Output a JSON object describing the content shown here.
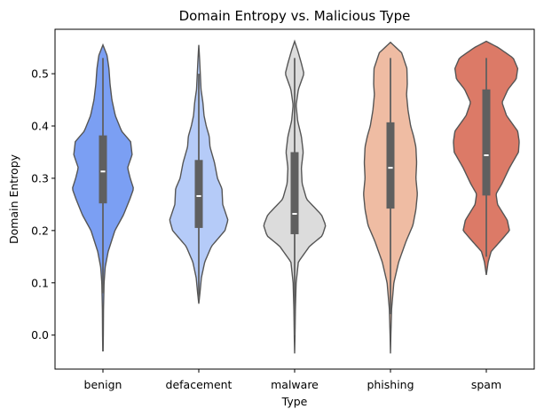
{
  "chart_data": {
    "type": "violin",
    "title": "Domain Entropy vs. Malicious Type",
    "xlabel": "Type",
    "ylabel": "Domain Entropy",
    "categories": [
      "benign",
      "defacement",
      "malware",
      "phishing",
      "spam"
    ],
    "ylim": [
      -0.065,
      0.585
    ],
    "yticks": [
      "0.0",
      "0.1",
      "0.2",
      "0.3",
      "0.4",
      "0.5"
    ],
    "grid": false,
    "colors": {
      "benign": "#7b9ff3",
      "defacement": "#b5cbf8",
      "malware": "#dcdcdc",
      "phishing": "#efbca3",
      "spam": "#dc7a67",
      "box": "#5f5f5f",
      "outline": "#555555"
    },
    "series": [
      {
        "category": "benign",
        "range": [
          -0.03,
          0.555
        ],
        "whisker": [
          0.08,
          0.53
        ],
        "q1": 0.252,
        "median": 0.313,
        "q3": 0.382,
        "density": [
          [
            -0.03,
            0.005
          ],
          [
            0.0,
            0.01
          ],
          [
            0.05,
            0.015
          ],
          [
            0.1,
            0.03
          ],
          [
            0.13,
            0.06
          ],
          [
            0.16,
            0.14
          ],
          [
            0.2,
            0.32
          ],
          [
            0.23,
            0.55
          ],
          [
            0.26,
            0.72
          ],
          [
            0.28,
            0.82
          ],
          [
            0.3,
            0.73
          ],
          [
            0.32,
            0.66
          ],
          [
            0.345,
            0.78
          ],
          [
            0.37,
            0.74
          ],
          [
            0.39,
            0.5
          ],
          [
            0.42,
            0.33
          ],
          [
            0.45,
            0.24
          ],
          [
            0.48,
            0.19
          ],
          [
            0.51,
            0.16
          ],
          [
            0.535,
            0.11
          ],
          [
            0.555,
            0.0
          ]
        ]
      },
      {
        "category": "defacement",
        "range": [
          0.06,
          0.555
        ],
        "whisker": [
          0.07,
          0.5
        ],
        "q1": 0.205,
        "median": 0.266,
        "q3": 0.335,
        "density": [
          [
            0.06,
            0.0
          ],
          [
            0.08,
            0.03
          ],
          [
            0.11,
            0.07
          ],
          [
            0.14,
            0.16
          ],
          [
            0.17,
            0.34
          ],
          [
            0.2,
            0.7
          ],
          [
            0.22,
            0.78
          ],
          [
            0.25,
            0.64
          ],
          [
            0.28,
            0.62
          ],
          [
            0.3,
            0.5
          ],
          [
            0.33,
            0.42
          ],
          [
            0.36,
            0.3
          ],
          [
            0.38,
            0.28
          ],
          [
            0.4,
            0.2
          ],
          [
            0.42,
            0.14
          ],
          [
            0.445,
            0.11
          ],
          [
            0.47,
            0.06
          ],
          [
            0.5,
            0.04
          ],
          [
            0.53,
            0.02
          ],
          [
            0.555,
            0.0
          ]
        ]
      },
      {
        "category": "malware",
        "range": [
          -0.035,
          0.562
        ],
        "whisker": [
          0.0,
          0.53
        ],
        "q1": 0.193,
        "median": 0.232,
        "q3": 0.35,
        "density": [
          [
            -0.035,
            0.0
          ],
          [
            0.0,
            0.01
          ],
          [
            0.05,
            0.02
          ],
          [
            0.1,
            0.04
          ],
          [
            0.14,
            0.1
          ],
          [
            0.17,
            0.4
          ],
          [
            0.19,
            0.74
          ],
          [
            0.21,
            0.83
          ],
          [
            0.23,
            0.72
          ],
          [
            0.26,
            0.32
          ],
          [
            0.29,
            0.2
          ],
          [
            0.32,
            0.18
          ],
          [
            0.35,
            0.23
          ],
          [
            0.38,
            0.18
          ],
          [
            0.41,
            0.08
          ],
          [
            0.44,
            0.04
          ],
          [
            0.47,
            0.1
          ],
          [
            0.5,
            0.25
          ],
          [
            0.52,
            0.18
          ],
          [
            0.545,
            0.08
          ],
          [
            0.562,
            0.0
          ]
        ]
      },
      {
        "category": "phishing",
        "range": [
          -0.035,
          0.56
        ],
        "whisker": [
          0.04,
          0.53
        ],
        "q1": 0.242,
        "median": 0.32,
        "q3": 0.407,
        "density": [
          [
            -0.035,
            0.0
          ],
          [
            0.0,
            0.01
          ],
          [
            0.05,
            0.03
          ],
          [
            0.1,
            0.09
          ],
          [
            0.14,
            0.22
          ],
          [
            0.18,
            0.42
          ],
          [
            0.21,
            0.6
          ],
          [
            0.24,
            0.68
          ],
          [
            0.27,
            0.72
          ],
          [
            0.3,
            0.68
          ],
          [
            0.33,
            0.7
          ],
          [
            0.36,
            0.68
          ],
          [
            0.38,
            0.62
          ],
          [
            0.4,
            0.54
          ],
          [
            0.43,
            0.47
          ],
          [
            0.46,
            0.43
          ],
          [
            0.48,
            0.45
          ],
          [
            0.51,
            0.44
          ],
          [
            0.54,
            0.3
          ],
          [
            0.56,
            0.0
          ]
        ]
      },
      {
        "category": "spam",
        "range": [
          0.115,
          0.562
        ],
        "whisker": [
          0.15,
          0.53
        ],
        "q1": 0.267,
        "median": 0.344,
        "q3": 0.47,
        "density": [
          [
            0.115,
            0.0
          ],
          [
            0.14,
            0.05
          ],
          [
            0.16,
            0.13
          ],
          [
            0.18,
            0.38
          ],
          [
            0.2,
            0.62
          ],
          [
            0.22,
            0.56
          ],
          [
            0.25,
            0.3
          ],
          [
            0.27,
            0.26
          ],
          [
            0.29,
            0.42
          ],
          [
            0.32,
            0.62
          ],
          [
            0.35,
            0.86
          ],
          [
            0.37,
            0.88
          ],
          [
            0.39,
            0.84
          ],
          [
            0.42,
            0.54
          ],
          [
            0.445,
            0.42
          ],
          [
            0.47,
            0.58
          ],
          [
            0.49,
            0.8
          ],
          [
            0.51,
            0.84
          ],
          [
            0.53,
            0.72
          ],
          [
            0.55,
            0.32
          ],
          [
            0.562,
            0.0
          ]
        ]
      }
    ]
  }
}
